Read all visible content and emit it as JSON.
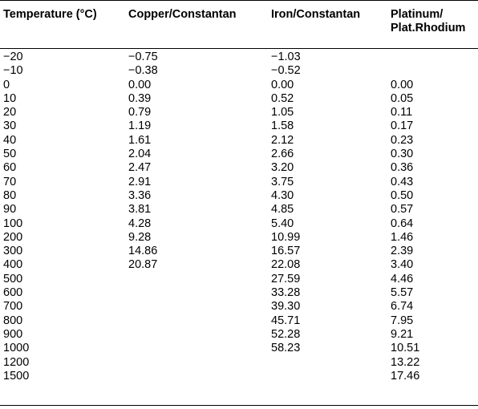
{
  "table": {
    "headers": [
      {
        "line1": "Temperature (°C)",
        "line2": ""
      },
      {
        "line1": "Copper/Constantan",
        "line2": ""
      },
      {
        "line1": "Iron/Constantan",
        "line2": ""
      },
      {
        "line1": "Platinum/",
        "line2": "Plat.Rhodium"
      }
    ],
    "rows": [
      [
        "−20",
        "−0.75",
        "−1.03",
        ""
      ],
      [
        "−10",
        "−0.38",
        "−0.52",
        ""
      ],
      [
        "0",
        "0.00",
        "0.00",
        "0.00"
      ],
      [
        "10",
        "0.39",
        "0.52",
        "0.05"
      ],
      [
        "20",
        "0.79",
        "1.05",
        "0.11"
      ],
      [
        "30",
        "1.19",
        "1.58",
        "0.17"
      ],
      [
        "40",
        "1.61",
        "2.12",
        "0.23"
      ],
      [
        "50",
        "2.04",
        "2.66",
        "0.30"
      ],
      [
        "60",
        "2.47",
        "3.20",
        "0.36"
      ],
      [
        "70",
        "2.91",
        "3.75",
        "0.43"
      ],
      [
        "80",
        "3.36",
        "4.30",
        "0.50"
      ],
      [
        "90",
        "3.81",
        "4.85",
        "0.57"
      ],
      [
        "100",
        "4.28",
        "5.40",
        "0.64"
      ],
      [
        "200",
        "9.28",
        "10.99",
        "1.46"
      ],
      [
        "300",
        "14.86",
        "16.57",
        "2.39"
      ],
      [
        "400",
        "20.87",
        "22.08",
        "3.40"
      ],
      [
        "500",
        "",
        "27.59",
        "4.46"
      ],
      [
        "600",
        "",
        "33.28",
        "5.57"
      ],
      [
        "700",
        "",
        "39.30",
        "6.74"
      ],
      [
        "800",
        "",
        "45.71",
        "7.95"
      ],
      [
        "900",
        "",
        "52.28",
        "9.21"
      ],
      [
        "1000",
        "",
        "58.23",
        "10.51"
      ],
      [
        "1200",
        "",
        "",
        "13.22"
      ],
      [
        "1500",
        "",
        "",
        "17.46"
      ]
    ]
  }
}
